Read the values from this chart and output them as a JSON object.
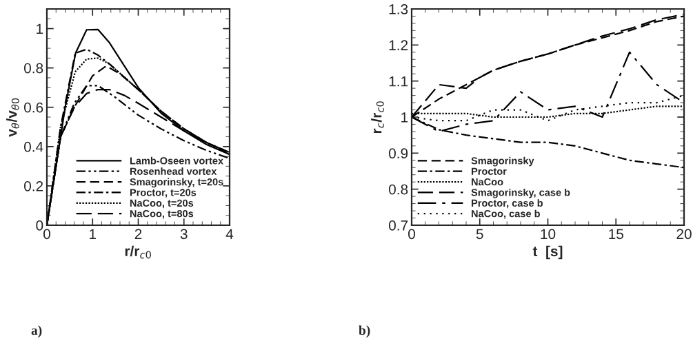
{
  "chart_data": [
    {
      "type": "line",
      "xlabel": "r/r$_{c0}$",
      "ylabel": "v$_{θ}$/v$_{θ0}$",
      "xlim": [
        0,
        4
      ],
      "ylim": [
        0,
        1.1
      ],
      "xticks": [
        0,
        1,
        2,
        3,
        4
      ],
      "yticks": [
        0,
        0.2,
        0.4,
        0.6,
        0.8,
        1
      ],
      "grid": false,
      "legend": "bottom right",
      "annotations": [
        "a)"
      ],
      "series": [
        {
          "name": "Lamb-Oseen vortex",
          "color": "#000000",
          "line_style": "solid",
          "x": [
            0,
            0.2,
            0.4,
            0.63,
            0.87,
            1.12,
            1.37,
            2,
            2.5,
            3,
            3.5,
            4
          ],
          "values": [
            0,
            0.3,
            0.6,
            0.877,
            0.994,
            0.995,
            0.928,
            0.7,
            0.57,
            0.48,
            0.41,
            0.36
          ]
        },
        {
          "name": "Rosenhead vortex",
          "color": "#000000",
          "line_style": "dashdotdot",
          "x": [
            0,
            0.3,
            0.6,
            0.87,
            1.12,
            1.5,
            2,
            2.5,
            3,
            3.5,
            4
          ],
          "values": [
            0,
            0.45,
            0.62,
            0.71,
            0.71,
            0.65,
            0.56,
            0.49,
            0.43,
            0.38,
            0.34
          ]
        },
        {
          "name": "Smagorinsky, t=20s",
          "color": "#000000",
          "line_style": "dashed",
          "x": [
            0,
            0.3,
            0.6,
            1.0,
            1.3,
            1.6,
            2,
            2.5,
            3,
            3.5,
            4
          ],
          "values": [
            0,
            0.45,
            0.6,
            0.76,
            0.81,
            0.77,
            0.69,
            0.58,
            0.49,
            0.42,
            0.37
          ]
        },
        {
          "name": "Proctor, t=20s",
          "color": "#000000",
          "line_style": "dashdot",
          "x": [
            0,
            0.3,
            0.62,
            0.87,
            1.12,
            1.37,
            2,
            2.5,
            3,
            3.5,
            4
          ],
          "values": [
            0,
            0.5,
            0.875,
            0.895,
            0.865,
            0.82,
            0.69,
            0.58,
            0.49,
            0.42,
            0.36
          ]
        },
        {
          "name": "NaCoo, t=20s",
          "color": "#000000",
          "line_style": "dotted",
          "x": [
            0,
            0.3,
            0.62,
            0.87,
            1.12,
            1.37,
            2,
            2.5,
            3,
            3.5,
            4
          ],
          "values": [
            0,
            0.5,
            0.78,
            0.845,
            0.85,
            0.82,
            0.69,
            0.58,
            0.49,
            0.42,
            0.36
          ]
        },
        {
          "name": "NaCoo, t=80s",
          "color": "#000000",
          "line_style": "longdash",
          "x": [
            0,
            0.3,
            0.6,
            0.87,
            1.12,
            1.37,
            1.7,
            2,
            2.5,
            3,
            3.5,
            4
          ],
          "values": [
            0,
            0.45,
            0.6,
            0.67,
            0.69,
            0.69,
            0.66,
            0.62,
            0.55,
            0.48,
            0.42,
            0.37
          ]
        }
      ]
    },
    {
      "type": "line",
      "xlabel": "t  [s]",
      "ylabel": "r$_{c}$/r$_{c0}$",
      "xlim": [
        0,
        20
      ],
      "ylim": [
        0.7,
        1.3
      ],
      "xticks": [
        0,
        5,
        10,
        15,
        20
      ],
      "yticks": [
        0.7,
        0.8,
        0.9,
        1,
        1.1,
        1.2,
        1.3
      ],
      "grid": false,
      "legend": "bottom left",
      "annotations": [
        "b)"
      ],
      "series": [
        {
          "name": "Smagorinsky",
          "color": "#000000",
          "line_style": "dashed",
          "x": [
            0,
            2,
            4,
            6,
            8,
            10,
            12,
            14,
            16,
            18,
            20
          ],
          "values": [
            1.0,
            1.05,
            1.09,
            1.13,
            1.155,
            1.175,
            1.2,
            1.22,
            1.24,
            1.265,
            1.28
          ]
        },
        {
          "name": "Proctor",
          "color": "#000000",
          "line_style": "dashdot",
          "x": [
            0,
            2,
            4,
            6,
            8,
            10,
            12,
            14,
            16,
            18,
            20
          ],
          "values": [
            1.0,
            0.965,
            0.95,
            0.94,
            0.93,
            0.93,
            0.92,
            0.9,
            0.88,
            0.87,
            0.86
          ]
        },
        {
          "name": "NaCoo",
          "color": "#000000",
          "line_style": "dotted",
          "x": [
            0,
            4,
            6,
            10,
            12,
            14,
            16,
            18,
            20
          ],
          "values": [
            1.01,
            1.01,
            1.0,
            1.0,
            1.01,
            1.01,
            1.02,
            1.03,
            1.03
          ]
        },
        {
          "name": "Smagorinsky, case b",
          "color": "#000000",
          "line_style": "longdash",
          "x": [
            0,
            2,
            4,
            5,
            6,
            8,
            10,
            12,
            14,
            16,
            18,
            20
          ],
          "values": [
            1.0,
            1.09,
            1.08,
            1.11,
            1.13,
            1.155,
            1.175,
            1.2,
            1.225,
            1.245,
            1.27,
            1.285
          ]
        },
        {
          "name": "Proctor, case b",
          "color": "#000000",
          "line_style": "longdashdot",
          "x": [
            0,
            2,
            4,
            6,
            8,
            10,
            12,
            14,
            16,
            18,
            20
          ],
          "values": [
            1.0,
            0.96,
            0.98,
            0.99,
            1.07,
            1.02,
            1.03,
            1.0,
            1.18,
            1.09,
            1.04
          ]
        },
        {
          "name": "NaCoo, case b",
          "color": "#000000",
          "line_style": "sparsedotted",
          "x": [
            0,
            2,
            4,
            6,
            8,
            10,
            12,
            14,
            16,
            18,
            20
          ],
          "values": [
            1.0,
            0.99,
            0.99,
            1.02,
            1.02,
            0.99,
            1.02,
            1.03,
            1.04,
            1.04,
            1.06
          ]
        }
      ]
    }
  ]
}
